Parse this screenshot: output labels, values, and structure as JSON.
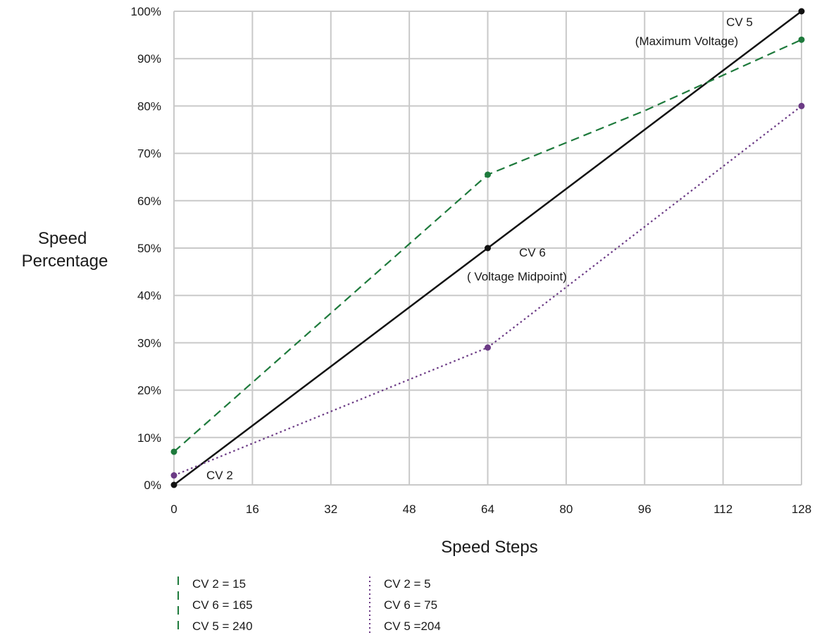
{
  "chart_data": {
    "type": "line",
    "xlabel": "Speed Steps",
    "ylabel_lines": [
      "Speed",
      "Percentage"
    ],
    "xlim": [
      0,
      128
    ],
    "ylim": [
      0,
      100
    ],
    "grid": true,
    "x_ticks": [
      "0",
      "16",
      "32",
      "48",
      "64",
      "80",
      "96",
      "112",
      "128"
    ],
    "x_tick_values": [
      0,
      16,
      32,
      48,
      64,
      80,
      96,
      112,
      128
    ],
    "y_ticks": [
      "0%",
      "10%",
      "20%",
      "30%",
      "40%",
      "50%",
      "60%",
      "70%",
      "80%",
      "90%",
      "100%"
    ],
    "y_tick_values": [
      0,
      10,
      20,
      30,
      40,
      50,
      60,
      70,
      80,
      90,
      100
    ],
    "series": [
      {
        "style": "solid",
        "color": "#111111",
        "x": [
          0,
          64,
          128
        ],
        "y": [
          0,
          50,
          100
        ]
      },
      {
        "style": "dashed",
        "color": "#1e7a3c",
        "x": [
          0,
          64,
          128
        ],
        "y": [
          7,
          65.5,
          94
        ],
        "path_x": [
          0,
          64,
          96,
          128
        ],
        "path_y": [
          7,
          65.5,
          79,
          94
        ]
      },
      {
        "style": "dotted",
        "color": "#6b3a85",
        "x": [
          0,
          64,
          128
        ],
        "y": [
          2,
          29,
          80
        ]
      }
    ],
    "annotations": [
      {
        "lines": [
          "CV 5",
          "(Maximum Voltage)"
        ],
        "x": 128,
        "y": 100
      },
      {
        "lines": [
          "CV 6",
          "( Voltage Midpoint)"
        ],
        "x": 64,
        "y": 50
      },
      {
        "lines": [
          "CV 2"
        ],
        "x": 0,
        "y": 0
      }
    ],
    "legend": {
      "placement": "bottom",
      "groups": [
        {
          "style": "dashed",
          "color": "#1e7a3c",
          "entries": [
            "CV 2 = 15",
            "CV 6 = 165",
            "CV 5 = 240"
          ]
        },
        {
          "style": "dotted",
          "color": "#6b3a85",
          "entries": [
            "CV 2 = 5",
            "CV 6 = 75",
            "CV 5 =204"
          ]
        }
      ]
    }
  }
}
